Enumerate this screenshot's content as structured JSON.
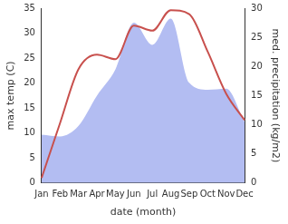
{
  "chart_data": {
    "type": "line",
    "x_label": "date (month)",
    "y_label": "max temp (C)",
    "y2_label": "med. precipitation (kg/m2)",
    "categories": [
      "Jan",
      "Feb",
      "Mar",
      "Apr",
      "May",
      "Jun",
      "Jul",
      "Aug",
      "Sep",
      "Oct",
      "Nov",
      "Dec"
    ],
    "series": [
      {
        "name": "med. precipitation (kg/m2)",
        "type": "area",
        "axis": "y2",
        "color": "#b3bdf2",
        "values": [
          8.3,
          8.0,
          9.8,
          15.0,
          19.5,
          27.5,
          23.7,
          28.2,
          17.2,
          16.0,
          16.2,
          10.5
        ]
      },
      {
        "name": "max temp (C)",
        "type": "line",
        "color": "#c8504d",
        "values": [
          1.0,
          12.0,
          22.8,
          25.7,
          24.8,
          31.5,
          30.5,
          34.6,
          33.8,
          26.3,
          17.9,
          12.6
        ]
      }
    ],
    "ylim": [
      0,
      35
    ],
    "yticks": [
      0,
      5,
      10,
      15,
      20,
      25,
      30,
      35
    ],
    "y2lim": [
      0,
      30
    ],
    "y2ticks": [
      0,
      5,
      10,
      15,
      20,
      25,
      30
    ],
    "grid": false
  }
}
